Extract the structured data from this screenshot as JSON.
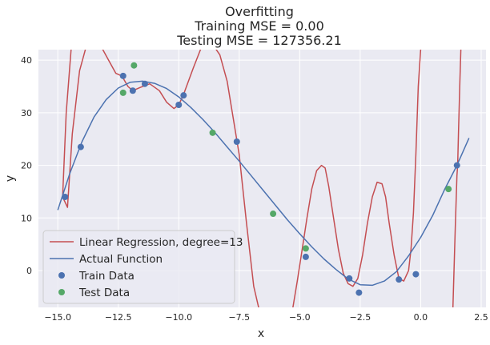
{
  "chart_data": {
    "type": "scatter",
    "title_lines": [
      "Overfitting",
      "Training MSE = 0.00",
      "Testing MSE = 127356.21"
    ],
    "xlabel": "x",
    "ylabel": "y",
    "xlim": [
      -15.8,
      2.7
    ],
    "ylim": [
      -7,
      42
    ],
    "xticks": [
      -15.0,
      -12.5,
      -10.0,
      -7.5,
      -5.0,
      -2.5,
      0.0,
      2.5
    ],
    "xtick_labels": [
      "−15.0",
      "−12.5",
      "−10.0",
      "−7.5",
      "−5.0",
      "−2.5",
      "0.0",
      "2.5"
    ],
    "yticks": [
      0,
      10,
      20,
      30,
      40
    ],
    "ytick_labels": [
      "0",
      "10",
      "20",
      "30",
      "40"
    ],
    "grid": true,
    "legend_position": "bottom-left",
    "colors": {
      "background": "#eaeaf2",
      "grid": "#ffffff",
      "regression": "#c44e52",
      "actual": "#4c72b0",
      "train": "#4c72b0",
      "test": "#55a868"
    },
    "series": [
      {
        "name": "Linear Regression, degree=13",
        "kind": "line",
        "x": [
          -14.45,
          -14.65,
          -14.8,
          -14.6,
          -14.4,
          -14.1,
          -13.8,
          -13.5,
          -13.2,
          -12.9,
          -12.6,
          -12.35,
          -12.1,
          -11.9,
          -11.6,
          -11.2,
          -10.8,
          -10.5,
          -10.2,
          -10.0,
          -9.8,
          -9.4,
          -9.1,
          -8.9,
          -8.6,
          -8.3,
          -8.0,
          -7.5,
          -7.2,
          -6.9,
          -6.7,
          -6.6
        ],
        "y": [
          42,
          30,
          14,
          12,
          26,
          38,
          43,
          44,
          42.5,
          40,
          37.5,
          37,
          35,
          34.2,
          34.8,
          35.5,
          34.2,
          32,
          30.8,
          31.5,
          33.5,
          38.5,
          42,
          43,
          43,
          41,
          36,
          22,
          9,
          -3,
          -7,
          -7.5
        ]
      },
      {
        "name": "Linear Regression, degree=13 (segment 2)",
        "kind": "line",
        "x": [
          -5.3,
          -5.1,
          -4.9,
          -4.7,
          -4.5,
          -4.3,
          -4.1,
          -3.95,
          -3.8,
          -3.6,
          -3.4,
          -3.2,
          -3.0,
          -2.8,
          -2.6,
          -2.4,
          -2.2,
          -2.0,
          -1.8,
          -1.6,
          -1.45,
          -1.3,
          -1.1,
          -0.9,
          -0.7,
          -0.5,
          -0.4,
          -0.3,
          -0.2,
          -0.1,
          0.0
        ],
        "y": [
          -7.5,
          -2,
          4,
          10,
          15.5,
          19,
          20,
          19.5,
          16,
          10,
          4,
          -0.5,
          -2.5,
          -3,
          -1.5,
          3,
          9,
          14,
          16.8,
          16.5,
          14,
          9,
          3,
          -1.5,
          -2,
          0,
          4,
          11,
          22,
          35,
          42
        ]
      },
      {
        "name": "Linear Regression, degree=13 (segment 3)",
        "kind": "line",
        "x": [
          1.33,
          1.43,
          1.5,
          1.53,
          1.56,
          1.62,
          1.66
        ],
        "y": [
          -7.5,
          8,
          18,
          20,
          26,
          36,
          42
        ]
      },
      {
        "name": "Actual Function",
        "kind": "line",
        "x": [
          -15.0,
          -14.5,
          -14.0,
          -13.5,
          -13.0,
          -12.5,
          -12.0,
          -11.5,
          -11.0,
          -10.5,
          -10.0,
          -9.5,
          -9.0,
          -8.5,
          -8.0,
          -7.5,
          -7.0,
          -6.5,
          -6.0,
          -5.5,
          -5.0,
          -4.5,
          -4.0,
          -3.5,
          -3.0,
          -2.5,
          -2.0,
          -1.5,
          -1.0,
          -0.5,
          0.0,
          0.5,
          1.0,
          1.5,
          2.0
        ],
        "y": [
          11.5,
          18.5,
          24.5,
          29.2,
          32.5,
          34.7,
          35.8,
          36.0,
          35.6,
          34.6,
          33.0,
          31.0,
          28.7,
          26.2,
          23.5,
          20.8,
          18.0,
          15.2,
          12.4,
          9.6,
          7.0,
          4.5,
          2.2,
          0.2,
          -1.6,
          -2.7,
          -2.8,
          -2.0,
          -0.2,
          2.8,
          6.3,
          10.5,
          15.5,
          20.0,
          25.2
        ]
      },
      {
        "name": "Train Data",
        "kind": "scatter",
        "x": [
          -14.7,
          -14.05,
          -12.3,
          -11.9,
          -11.4,
          -10.0,
          -9.8,
          -7.6,
          -4.75,
          -2.95,
          -2.55,
          -0.9,
          -0.2,
          1.5
        ],
        "y": [
          14,
          23.5,
          37,
          34.2,
          35.5,
          31.5,
          33.3,
          24.5,
          2.6,
          -1.5,
          -4.2,
          -1.7,
          -0.7,
          20
        ]
      },
      {
        "name": "Test Data",
        "kind": "scatter",
        "x": [
          -12.3,
          -11.85,
          -8.6,
          -6.1,
          -4.75,
          1.15
        ],
        "y": [
          33.8,
          39,
          26.2,
          10.8,
          4.2,
          15.5
        ]
      }
    ],
    "legend": [
      "Linear Regression, degree=13",
      "Actual Function",
      "Train Data",
      "Test Data"
    ]
  }
}
